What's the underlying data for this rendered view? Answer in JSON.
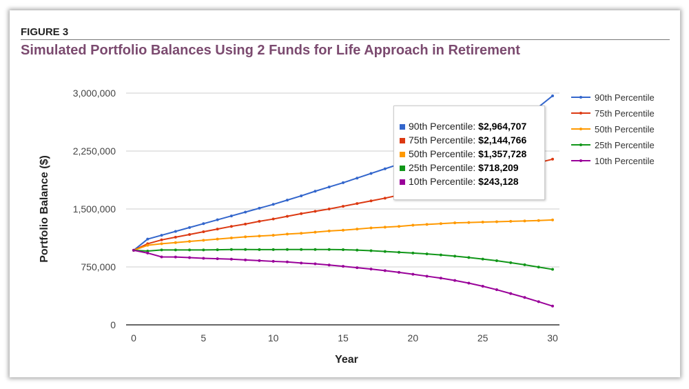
{
  "figure_label": "FIGURE 3",
  "figure_title": "Simulated Portfolio Balances Using 2 Funds for Life Approach in Retirement",
  "chart_data": {
    "type": "line",
    "title": "",
    "xlabel": "Year",
    "ylabel": "Portfolio Balance ($)",
    "xlim": [
      0,
      30
    ],
    "ylim": [
      0,
      3000000
    ],
    "xticks": [
      "0",
      "5",
      "10",
      "15",
      "20",
      "25",
      "30"
    ],
    "yticks": [
      "0",
      "750,000",
      "1,500,000",
      "2,250,000",
      "3,000,000"
    ],
    "grid": true,
    "legend_position": "right",
    "x": [
      0,
      1,
      2,
      3,
      4,
      5,
      6,
      7,
      8,
      9,
      10,
      11,
      12,
      13,
      14,
      15,
      16,
      17,
      18,
      19,
      20,
      21,
      22,
      23,
      24,
      25,
      26,
      27,
      28,
      29,
      30
    ],
    "series": [
      {
        "name": "90th Percentile",
        "color": "#3366cc",
        "values": [
          965000,
          1110000,
          1160000,
          1210000,
          1260000,
          1310000,
          1360000,
          1410000,
          1460000,
          1510000,
          1560000,
          1615000,
          1670000,
          1730000,
          1785000,
          1840000,
          1900000,
          1960000,
          2020000,
          2080000,
          2150000,
          2210000,
          2280000,
          2350000,
          2420000,
          2500000,
          2580000,
          2660000,
          2740000,
          2820000,
          2964707
        ]
      },
      {
        "name": "75th Percentile",
        "color": "#dc3912",
        "values": [
          965000,
          1050000,
          1100000,
          1135000,
          1170000,
          1205000,
          1240000,
          1275000,
          1305000,
          1340000,
          1370000,
          1405000,
          1440000,
          1470000,
          1500000,
          1535000,
          1570000,
          1605000,
          1640000,
          1680000,
          1720000,
          1760000,
          1800000,
          1840000,
          1880000,
          1920000,
          1960000,
          2000000,
          2050000,
          2100000,
          2144766
        ]
      },
      {
        "name": "50th Percentile",
        "color": "#ff9900",
        "values": [
          965000,
          1030000,
          1050000,
          1065000,
          1080000,
          1095000,
          1110000,
          1125000,
          1140000,
          1150000,
          1160000,
          1175000,
          1185000,
          1200000,
          1215000,
          1225000,
          1240000,
          1255000,
          1265000,
          1275000,
          1290000,
          1300000,
          1310000,
          1320000,
          1325000,
          1330000,
          1335000,
          1340000,
          1345000,
          1350000,
          1357728
        ]
      },
      {
        "name": "25th Percentile",
        "color": "#109618",
        "values": [
          965000,
          955000,
          970000,
          970000,
          970000,
          970000,
          972000,
          975000,
          975000,
          974000,
          974000,
          975000,
          975000,
          976000,
          975000,
          973000,
          968000,
          960000,
          950000,
          940000,
          930000,
          918000,
          905000,
          890000,
          872000,
          852000,
          830000,
          805000,
          778000,
          748000,
          718209
        ]
      },
      {
        "name": "10th Percentile",
        "color": "#990099",
        "values": [
          965000,
          930000,
          880000,
          878000,
          870000,
          862000,
          856000,
          850000,
          840000,
          832000,
          822000,
          815000,
          800000,
          790000,
          775000,
          758000,
          740000,
          722000,
          702000,
          680000,
          655000,
          630000,
          605000,
          575000,
          540000,
          500000,
          455000,
          405000,
          355000,
          300000,
          243128
        ]
      }
    ]
  },
  "tooltip": {
    "rows": [
      {
        "label": "90th Percentile: ",
        "value": "$2,964,707",
        "color": "#3366cc"
      },
      {
        "label": "75th Percentile: ",
        "value": "$2,144,766",
        "color": "#dc3912"
      },
      {
        "label": "50th Percentile: ",
        "value": "$1,357,728",
        "color": "#ff9900"
      },
      {
        "label": "25th Percentile: ",
        "value": "$718,209",
        "color": "#109618"
      },
      {
        "label": "10th Percentile: ",
        "value": "$243,128",
        "color": "#990099"
      }
    ]
  }
}
